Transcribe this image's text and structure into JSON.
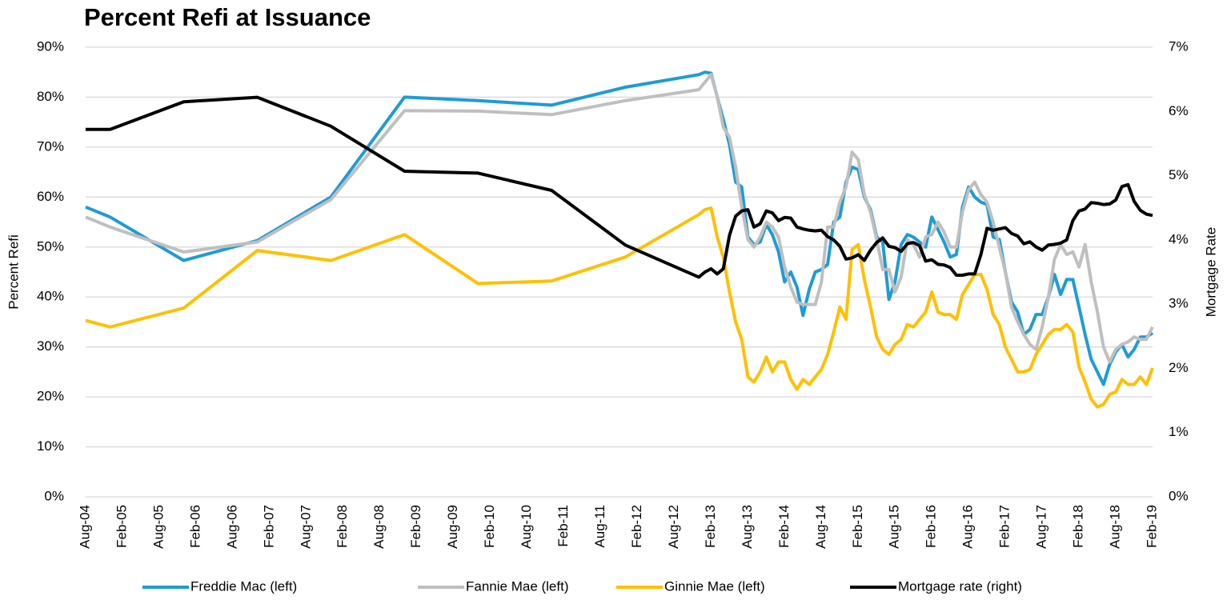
{
  "chart_data": {
    "type": "line",
    "title": "Percent Refi at Issuance",
    "y_label": "Percent Refi",
    "y2_label": "Mortgage Rate",
    "x": [
      "Aug-04",
      "Dec-04",
      "Dec-05",
      "Dec-06",
      "Dec-07",
      "Dec-08",
      "Dec-09",
      "Dec-10",
      "Dec-11",
      "Dec-12",
      "Jan-13",
      "Feb-13",
      "Mar-13",
      "Apr-13",
      "May-13",
      "Jun-13",
      "Jul-13",
      "Aug-13",
      "Sep-13",
      "Oct-13",
      "Nov-13",
      "Dec-13",
      "Jan-14",
      "Feb-14",
      "Mar-14",
      "Apr-14",
      "May-14",
      "Jun-14",
      "Jul-14",
      "Aug-14",
      "Sep-14",
      "Oct-14",
      "Nov-14",
      "Dec-14",
      "Jan-15",
      "Feb-15",
      "Mar-15",
      "Apr-15",
      "May-15",
      "Jun-15",
      "Jul-15",
      "Aug-15",
      "Sep-15",
      "Oct-15",
      "Nov-15",
      "Dec-15",
      "Jan-16",
      "Feb-16",
      "Mar-16",
      "Apr-16",
      "May-16",
      "Jun-16",
      "Jul-16",
      "Aug-16",
      "Sep-16",
      "Oct-16",
      "Nov-16",
      "Dec-16",
      "Jan-17",
      "Feb-17",
      "Mar-17",
      "Apr-17",
      "May-17",
      "Jun-17",
      "Jul-17",
      "Aug-17",
      "Sep-17",
      "Oct-17",
      "Nov-17",
      "Dec-17",
      "Jan-18",
      "Feb-18",
      "Mar-18",
      "Apr-18",
      "May-18",
      "Jun-18",
      "Jul-18",
      "Aug-18",
      "Sep-18",
      "Oct-18",
      "Nov-18",
      "Dec-18",
      "Jan-19",
      "Feb-19"
    ],
    "xlim": [
      "Aug-04",
      "Feb-19"
    ],
    "xticks": [
      "Aug-04",
      "Feb-05",
      "Aug-05",
      "Feb-06",
      "Aug-06",
      "Feb-07",
      "Aug-07",
      "Feb-08",
      "Aug-08",
      "Feb-09",
      "Aug-09",
      "Feb-10",
      "Aug-10",
      "Feb-11",
      "Aug-11",
      "Feb-12",
      "Aug-12",
      "Feb-13",
      "Aug-13",
      "Feb-14",
      "Aug-14",
      "Feb-15",
      "Aug-15",
      "Feb-16",
      "Aug-16",
      "Feb-17",
      "Aug-17",
      "Feb-18",
      "Aug-18",
      "Feb-19"
    ],
    "ylim": [
      0,
      90
    ],
    "yticks": [
      {
        "value": 0,
        "label": "0%"
      },
      {
        "value": 10,
        "label": "10%"
      },
      {
        "value": 20,
        "label": "20%"
      },
      {
        "value": 30,
        "label": "30%"
      },
      {
        "value": 40,
        "label": "40%"
      },
      {
        "value": 50,
        "label": "50%"
      },
      {
        "value": 60,
        "label": "60%"
      },
      {
        "value": 70,
        "label": "70%"
      },
      {
        "value": 80,
        "label": "80%"
      },
      {
        "value": 90,
        "label": "90%"
      }
    ],
    "y2lim": [
      0,
      7
    ],
    "y2ticks": [
      {
        "value": 0,
        "label": "0%"
      },
      {
        "value": 1,
        "label": "1%"
      },
      {
        "value": 2,
        "label": "2%"
      },
      {
        "value": 3,
        "label": "3%"
      },
      {
        "value": 4,
        "label": "4%"
      },
      {
        "value": 5,
        "label": "5%"
      },
      {
        "value": 6,
        "label": "6%"
      },
      {
        "value": 7,
        "label": "7%"
      }
    ],
    "grid": true,
    "legend": "bottom",
    "series": [
      {
        "name": "Freddie Mac (left)",
        "color": "#1f9bd7",
        "values": [
          58,
          56,
          47.3,
          51.3,
          60,
          80,
          79.3,
          78.4,
          82,
          84.5,
          85,
          84.8,
          80,
          75.5,
          70.5,
          63,
          62,
          52,
          50.5,
          51,
          54.5,
          52.5,
          49,
          43,
          45,
          42,
          36.3,
          41.5,
          45,
          45.5,
          46.5,
          55,
          56,
          63,
          66,
          65.5,
          60,
          57.5,
          52,
          51,
          39.5,
          43,
          50.5,
          52.5,
          52,
          51,
          50,
          56,
          53.5,
          51,
          48,
          48.5,
          58,
          62,
          60,
          59,
          58.5,
          52,
          51.5,
          45,
          39,
          37,
          32.5,
          33.5,
          36.5,
          36.5,
          40,
          44.5,
          40.5,
          43.5,
          43.5,
          38,
          32.5,
          27.5,
          25,
          22.5,
          26.5,
          29,
          30.5,
          28,
          29.5,
          32,
          32,
          32.8
        ]
      },
      {
        "name": "Fannie Mae (left)",
        "color": "#bfbfbf",
        "values": [
          56,
          54,
          49,
          51,
          59.5,
          77.3,
          77.2,
          76.5,
          79.3,
          81.5,
          83,
          84.5,
          80,
          74,
          72,
          66,
          58,
          51.5,
          50,
          52,
          55,
          54,
          52,
          46,
          42,
          39,
          38.5,
          38.5,
          38.5,
          43,
          54,
          54,
          59,
          62,
          69,
          67.5,
          60.5,
          57,
          51.5,
          45.5,
          45.5,
          41,
          44,
          51.5,
          50.5,
          48,
          52,
          52.5,
          55,
          53,
          50,
          50,
          57,
          61.5,
          63,
          60.5,
          59,
          55,
          50,
          45,
          38,
          35,
          32.5,
          30.5,
          29.5,
          34,
          40,
          47.5,
          50.5,
          48.5,
          49,
          46,
          50.5,
          43,
          37,
          30,
          27,
          29.5,
          30.5,
          31,
          32,
          31.5,
          31.5,
          34
        ]
      },
      {
        "name": "Ginnie Mae (left)",
        "color": "#ffc000",
        "values": [
          35.3,
          34,
          37.8,
          49.3,
          47.3,
          52.5,
          42.7,
          43.2,
          48,
          56.5,
          57.5,
          57.8,
          52,
          48,
          41,
          35,
          31.5,
          24,
          23,
          25,
          28,
          25,
          27,
          27,
          23.5,
          21.5,
          23.5,
          22.5,
          24,
          25.5,
          28.5,
          33,
          38,
          35.5,
          49.5,
          50.5,
          43.5,
          38,
          32,
          29.5,
          28.5,
          30.5,
          31.5,
          34.5,
          34,
          35.5,
          37,
          41,
          37,
          36.5,
          36.5,
          35.5,
          40.5,
          42.5,
          44.5,
          44.5,
          41.5,
          36.5,
          34.5,
          30,
          27.5,
          25,
          25,
          25.5,
          28.5,
          30.5,
          32.5,
          33.5,
          33.5,
          34.5,
          33,
          26,
          23,
          19.5,
          18,
          18.5,
          20.5,
          21,
          23.5,
          22.5,
          22.5,
          24,
          22.5,
          25.8
        ]
      },
      {
        "name": "Mortgage rate (right)",
        "color": "#000000",
        "axis": "y2",
        "values": [
          5.72,
          5.72,
          6.15,
          6.22,
          5.77,
          5.07,
          5.04,
          4.77,
          3.92,
          3.42,
          3.5,
          3.55,
          3.47,
          3.55,
          4.07,
          4.37,
          4.45,
          4.47,
          4.2,
          4.25,
          4.45,
          4.42,
          4.3,
          4.35,
          4.34,
          4.2,
          4.17,
          4.15,
          4.14,
          4.15,
          4.05,
          4.0,
          3.9,
          3.7,
          3.72,
          3.77,
          3.68,
          3.84,
          3.96,
          4.03,
          3.9,
          3.88,
          3.82,
          3.94,
          3.96,
          3.91,
          3.67,
          3.69,
          3.62,
          3.61,
          3.57,
          3.45,
          3.45,
          3.47,
          3.47,
          3.77,
          4.18,
          4.15,
          4.17,
          4.19,
          4.1,
          4.06,
          3.94,
          3.97,
          3.89,
          3.84,
          3.92,
          3.93,
          3.95,
          4.0,
          4.3,
          4.45,
          4.48,
          4.58,
          4.57,
          4.55,
          4.56,
          4.62,
          4.83,
          4.86,
          4.6,
          4.46,
          4.4,
          4.38
        ]
      }
    ]
  }
}
